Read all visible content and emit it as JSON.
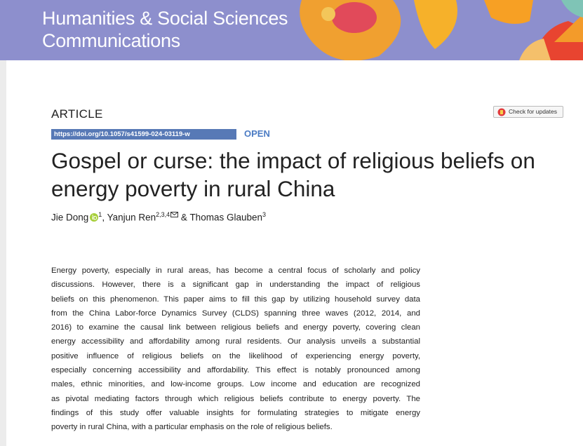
{
  "header": {
    "journal": [
      "Humanities & Social Sciences",
      "Communications"
    ]
  },
  "article_type": "ARTICLE",
  "doi": "https://doi.org/10.1057/s41599-024-03119-w",
  "access": "OPEN",
  "check_updates": "Check for updates",
  "title": [
    "Gospel or curse: the impact of religious beliefs on",
    "energy poverty in rural China"
  ],
  "authors": [
    {
      "name": "Jie Dong",
      "affiliation": "1"
    },
    {
      "name": "Yanjun Ren",
      "affiliation": "2,3,4"
    },
    {
      "name": "Thomas Glauben",
      "affiliation": "3"
    }
  ],
  "author_separators": [
    ", ",
    " & "
  ],
  "abstract": [
    "Energy poverty, especially in rural areas, has become a central focus of scholarly and policy",
    "discussions. However, there is a significant gap in understanding the impact of religious",
    "beliefs on this phenomenon. This paper aims to fill this gap by utilizing household survey data",
    "from the China Labor-force Dynamics Survey (CLDS) spanning three waves (2012, 2014, and",
    "2016) to examine the causal link between religious beliefs and energy poverty, covering clean",
    "energy accessibility and affordability among rural residents. Our analysis unveils a substantial",
    "positive influence of religious beliefs on the likelihood of experiencing energy poverty,",
    "especially concerning accessibility and affordability. This effect is notably pronounced among",
    "males, ethnic minorities, and low-income groups. Low income and education are recognized",
    "as pivotal mediating factors through which religious beliefs contribute to energy poverty. The",
    "findings of this study offer valuable insights for formulating strategies to mitigate energy",
    "poverty in rural China, with a particular emphasis on the role of religious beliefs."
  ]
}
